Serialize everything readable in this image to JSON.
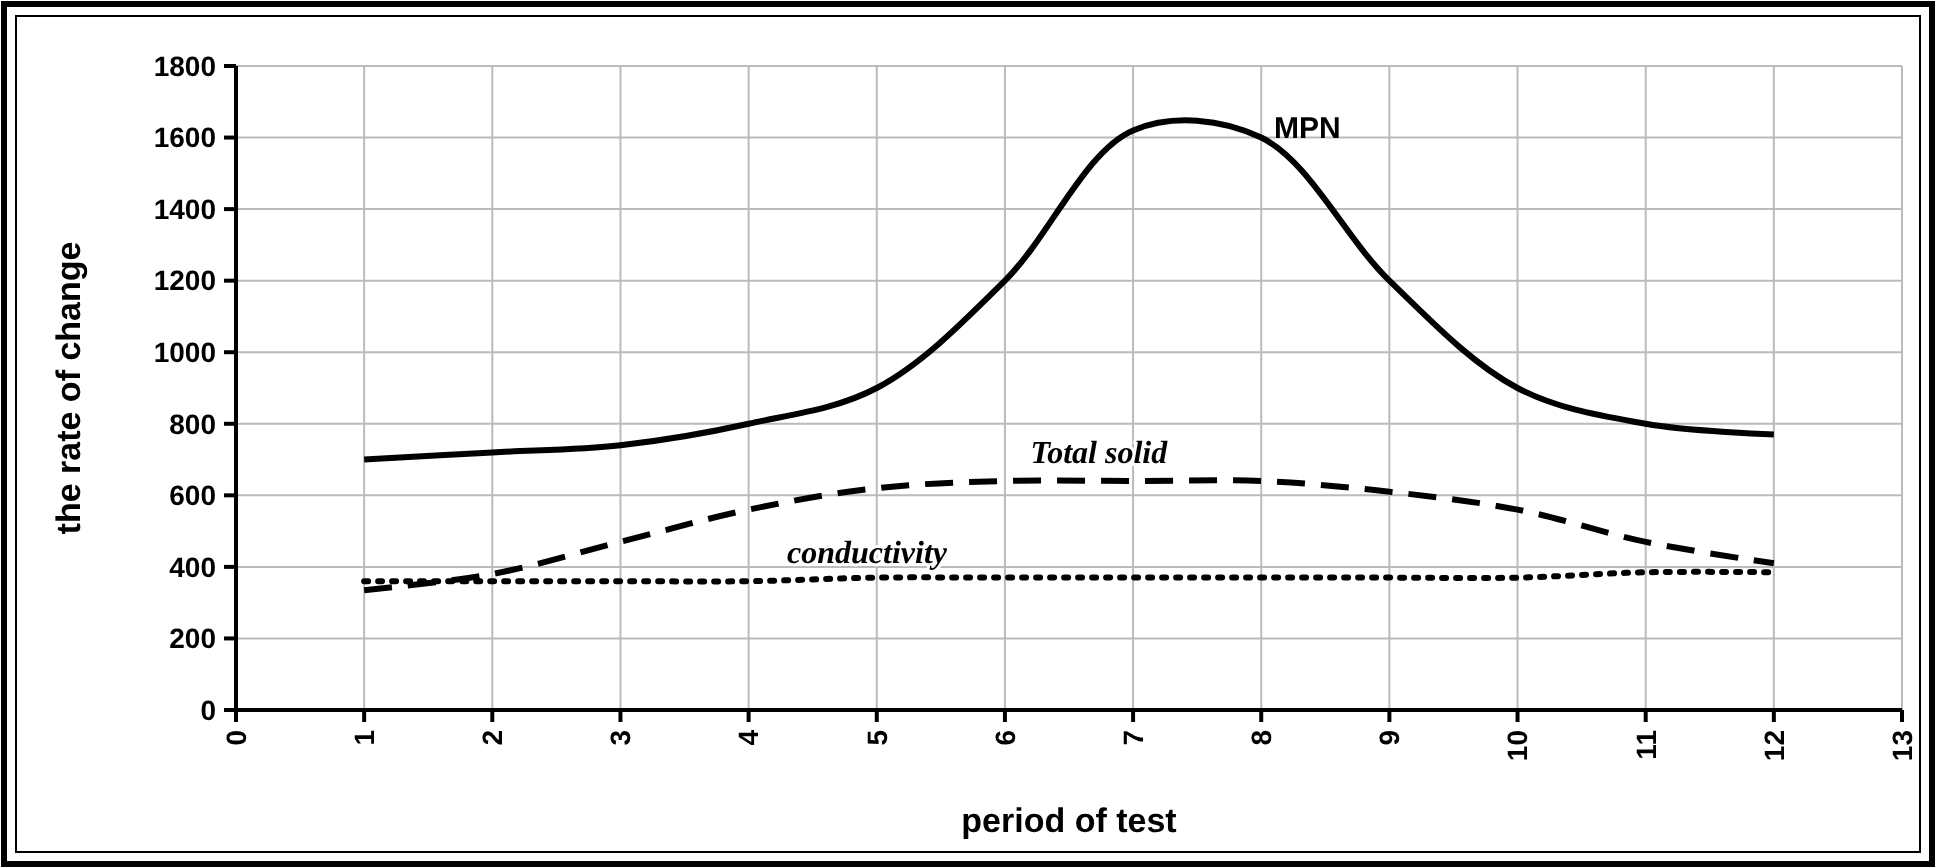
{
  "chart_data": {
    "type": "line",
    "xlabel": "period of test",
    "ylabel": "the rate of change",
    "x": [
      1,
      2,
      3,
      4,
      5,
      6,
      7,
      8,
      9,
      10,
      11,
      12
    ],
    "xlim": [
      0,
      13
    ],
    "xticks": [
      0,
      1,
      2,
      3,
      4,
      5,
      6,
      7,
      8,
      9,
      10,
      11,
      12,
      13
    ],
    "ylim": [
      0,
      1800
    ],
    "yticks": [
      0,
      200,
      400,
      600,
      800,
      1000,
      1200,
      1400,
      1600,
      1800
    ],
    "grid": true,
    "marker": "none",
    "series": [
      {
        "name": "MPN",
        "color": "#000000",
        "line_style": "solid",
        "values": [
          700,
          720,
          740,
          800,
          900,
          1200,
          1620,
          1600,
          1200,
          900,
          800,
          770
        ]
      },
      {
        "name": "Total solid",
        "color": "#000000",
        "line_style": "dashed",
        "values": [
          335,
          380,
          470,
          560,
          620,
          640,
          640,
          640,
          610,
          560,
          470,
          410
        ]
      },
      {
        "name": "conductivity",
        "color": "#000000",
        "line_style": "dotted",
        "values": [
          360,
          360,
          360,
          360,
          370,
          370,
          370,
          370,
          370,
          370,
          385,
          385
        ]
      }
    ]
  }
}
